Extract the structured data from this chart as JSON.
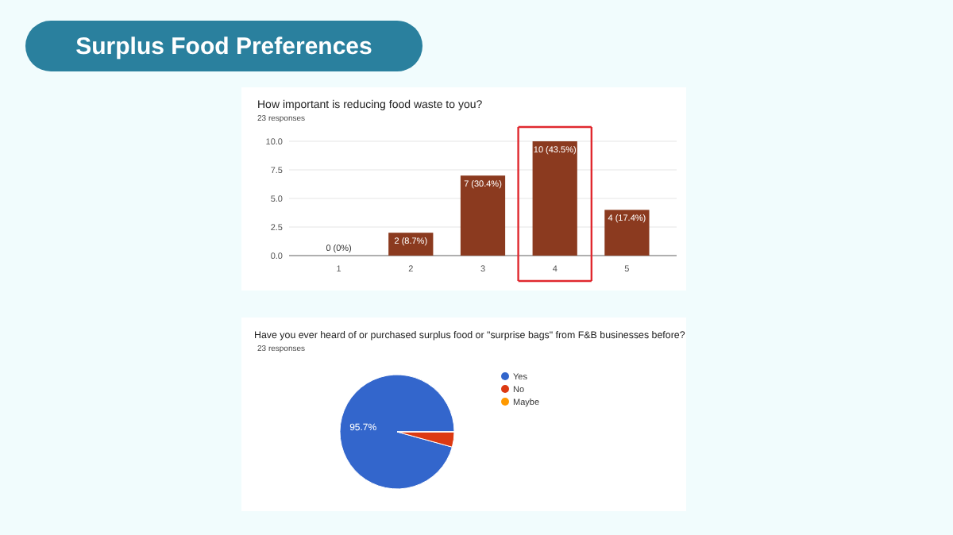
{
  "chart_data": [
    {
      "type": "bar",
      "title": "Surplus Food Preferences",
      "subtitle": "How important is reducing food waste to you?",
      "annotations": [
        "23 responses"
      ],
      "categories": [
        "1",
        "2",
        "3",
        "4",
        "5"
      ],
      "values": [
        0,
        2,
        7,
        10,
        4
      ],
      "color": "#8b3a1f",
      "value_labels": [
        "0 (0%)",
        "2 (8.7%)",
        "7 (30.4%)",
        "10 (43.5%)",
        "4 (17.4%)"
      ],
      "ylim": [
        0,
        10
      ],
      "yticks": [
        {
          "value": 0,
          "label": "0.0"
        },
        {
          "value": 2.5,
          "label": "2.5"
        },
        {
          "value": 5,
          "label": "5.0"
        },
        {
          "value": 7.5,
          "label": "7.5"
        },
        {
          "value": 10,
          "label": "10.0"
        }
      ],
      "grid": "y"
    },
    {
      "type": "pie",
      "title": "Have you ever heard of or purchased surplus food or \"surprise bags\" from F&B businesses before?",
      "annotations": [
        "23 responses"
      ],
      "categories": [
        "Yes",
        "No",
        "Maybe"
      ],
      "values": [
        95.7,
        4.3,
        0
      ],
      "colors": [
        "#3366cc",
        "#dc3912",
        "#ff9900"
      ],
      "value_labels": [
        "95.7%",
        null,
        null
      ],
      "legend": "right"
    }
  ]
}
